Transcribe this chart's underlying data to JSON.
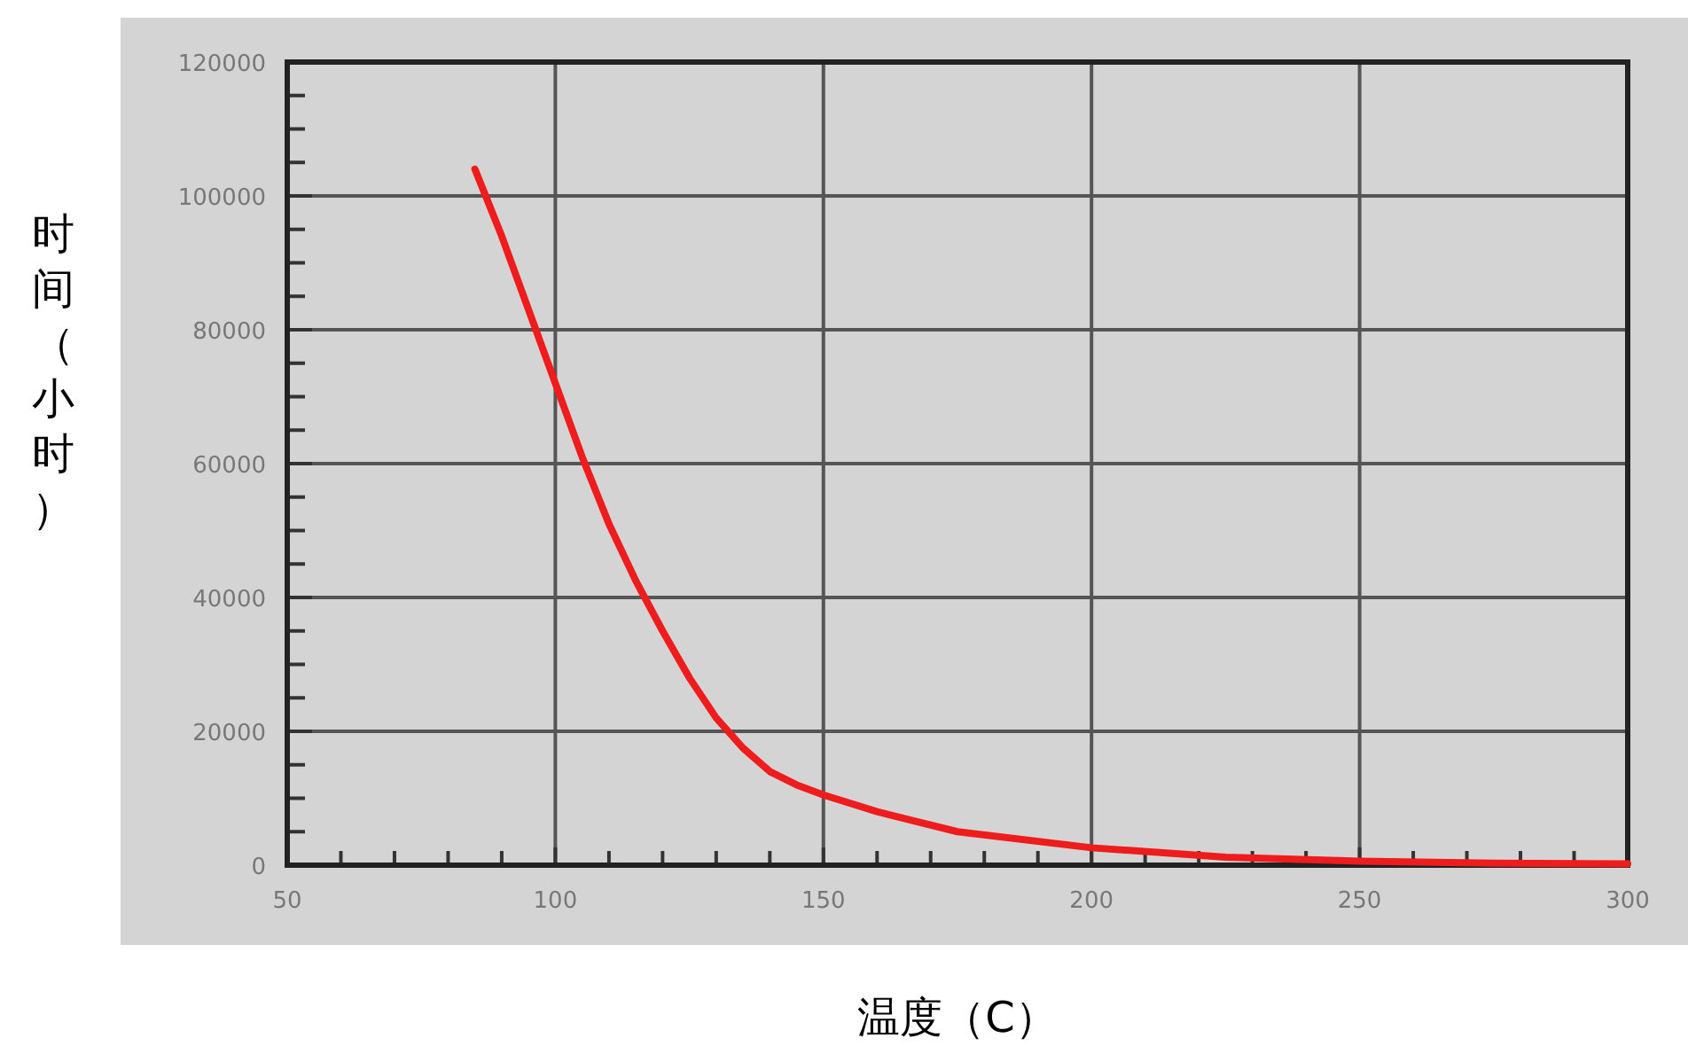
{
  "chart_data": {
    "type": "line",
    "xlabel": "温度（C）",
    "ylabel": "时间（小时）",
    "x": [
      85,
      90,
      95,
      100,
      105,
      110,
      115,
      120,
      125,
      130,
      135,
      140,
      145,
      150,
      160,
      175,
      200,
      225,
      250,
      275,
      300
    ],
    "series": [
      {
        "color": "#ee1c1c",
        "values": [
          104000,
          94000,
          83000,
          72000,
          61000,
          51000,
          42500,
          35000,
          28000,
          22000,
          17500,
          14000,
          12000,
          10500,
          8000,
          5000,
          2600,
          1200,
          600,
          300,
          200
        ]
      }
    ],
    "xlim": [
      50,
      300
    ],
    "ylim": [
      0,
      120000
    ],
    "xticks": [
      50,
      {
        "value": 60,
        "label": null
      },
      {
        "value": 70,
        "label": null
      },
      {
        "value": 80,
        "label": null
      },
      {
        "value": 90,
        "label": null
      },
      100,
      {
        "value": 110,
        "label": null
      },
      {
        "value": 120,
        "label": null
      },
      {
        "value": 130,
        "label": null
      },
      {
        "value": 140,
        "label": null
      },
      150,
      {
        "value": 160,
        "label": null
      },
      {
        "value": 170,
        "label": null
      },
      {
        "value": 180,
        "label": null
      },
      {
        "value": 190,
        "label": null
      },
      200,
      {
        "value": 210,
        "label": null
      },
      {
        "value": 220,
        "label": null
      },
      {
        "value": 230,
        "label": null
      },
      {
        "value": 240,
        "label": null
      },
      250,
      {
        "value": 260,
        "label": null
      },
      {
        "value": 270,
        "label": null
      },
      {
        "value": 280,
        "label": null
      },
      {
        "value": 290,
        "label": null
      },
      300
    ],
    "yticks": [
      0,
      {
        "value": 5000,
        "label": null
      },
      {
        "value": 10000,
        "label": null
      },
      {
        "value": 15000,
        "label": null
      },
      20000,
      {
        "value": 25000,
        "label": null
      },
      {
        "value": 30000,
        "label": null
      },
      {
        "value": 35000,
        "label": null
      },
      40000,
      {
        "value": 45000,
        "label": null
      },
      {
        "value": 50000,
        "label": null
      },
      {
        "value": 55000,
        "label": null
      },
      60000,
      {
        "value": 65000,
        "label": null
      },
      {
        "value": 70000,
        "label": null
      },
      {
        "value": 75000,
        "label": null
      },
      80000,
      {
        "value": 85000,
        "label": null
      },
      {
        "value": 90000,
        "label": null
      },
      {
        "value": 95000,
        "label": null
      },
      100000,
      {
        "value": 105000,
        "label": null
      },
      {
        "value": 110000,
        "label": null
      },
      {
        "value": 115000,
        "label": null
      },
      120000
    ],
    "grid": true,
    "marker": "none",
    "line_style": "solid"
  }
}
